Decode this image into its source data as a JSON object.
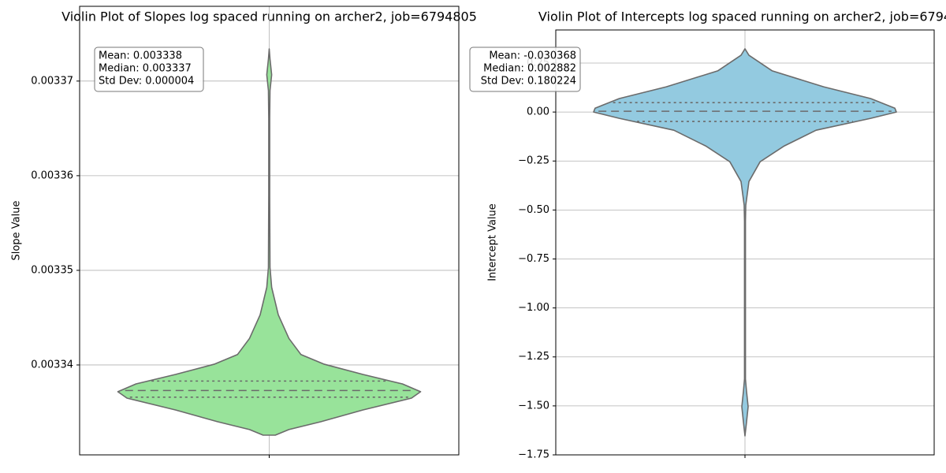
{
  "chart_data": [
    {
      "type": "violin",
      "title": "Violin Plot of Slopes log spaced running on archer2, job=6794805",
      "y_label": "Slope Value",
      "color": "#98e39a",
      "ylim": [
        0.0033305,
        0.0033779
      ],
      "yticks": [
        0.00334,
        0.00335,
        0.00336,
        0.00337
      ],
      "grid": true,
      "quartiles": [
        0.0033366,
        0.0033373,
        0.0033383
      ],
      "density": {
        "y": [
          0.0033734,
          0.00337233,
          0.00337067,
          0.003369,
          0.0033661,
          0.0033578,
          0.0033503,
          0.0033482,
          0.0033453,
          0.0033428,
          0.0033411,
          0.0033401,
          0.003339,
          0.003338,
          0.00333717,
          0.0033365,
          0.00333525,
          0.003334,
          0.00333317,
          0.00333258
        ],
        "width": [
          0,
          0.005,
          0.016,
          0.005,
          0.003,
          0.003,
          0.005,
          0.016,
          0.06,
          0.13,
          0.21,
          0.36,
          0.62,
          0.88,
          1,
          0.94,
          0.62,
          0.34,
          0.13,
          0.04
        ]
      },
      "stats": [
        "Mean: 0.003338",
        "Median: 0.003337",
        "Std Dev: 0.000004"
      ]
    },
    {
      "type": "violin",
      "title": "Violin Plot of Intercepts log spaced running on archer2, job=6794",
      "y_label": "Intercept Value",
      "color": "#93cae0",
      "ylim": [
        -1.75,
        0.419
      ],
      "yticks": [
        {
          "value": -1.75,
          "label": "−1.75"
        },
        {
          "value": -1.5,
          "label": "−1.50"
        },
        {
          "value": -1.25,
          "label": "−1.25"
        },
        {
          "value": -1.0,
          "label": "−1.00"
        },
        {
          "value": -0.75,
          "label": "−0.75"
        },
        {
          "value": -0.5,
          "label": "−0.50"
        },
        {
          "value": -0.25,
          "label": "−0.25"
        },
        {
          "value": 0,
          "label": "0.00"
        },
        0.25
      ],
      "grid": true,
      "quartiles": [
        -0.048,
        0.004,
        0.048
      ],
      "density": {
        "y": [
          0.323,
          0.29,
          0.21,
          0.129,
          0.069,
          0.02,
          0,
          -0.032,
          -0.093,
          -0.173,
          -0.254,
          -0.355,
          -0.476,
          -0.556,
          -1.363,
          -1.423,
          -1.504,
          -1.585,
          -1.653
        ],
        "width": [
          0,
          0.026,
          0.18,
          0.52,
          0.83,
          0.99,
          1,
          0.83,
          0.47,
          0.26,
          0.1,
          0.026,
          0.005,
          0.003,
          0.003,
          0.01,
          0.021,
          0.01,
          0
        ]
      },
      "stats": [
        "Mean: -0.030368",
        "Median: 0.002882",
        "Std Dev: 0.180224"
      ]
    }
  ]
}
